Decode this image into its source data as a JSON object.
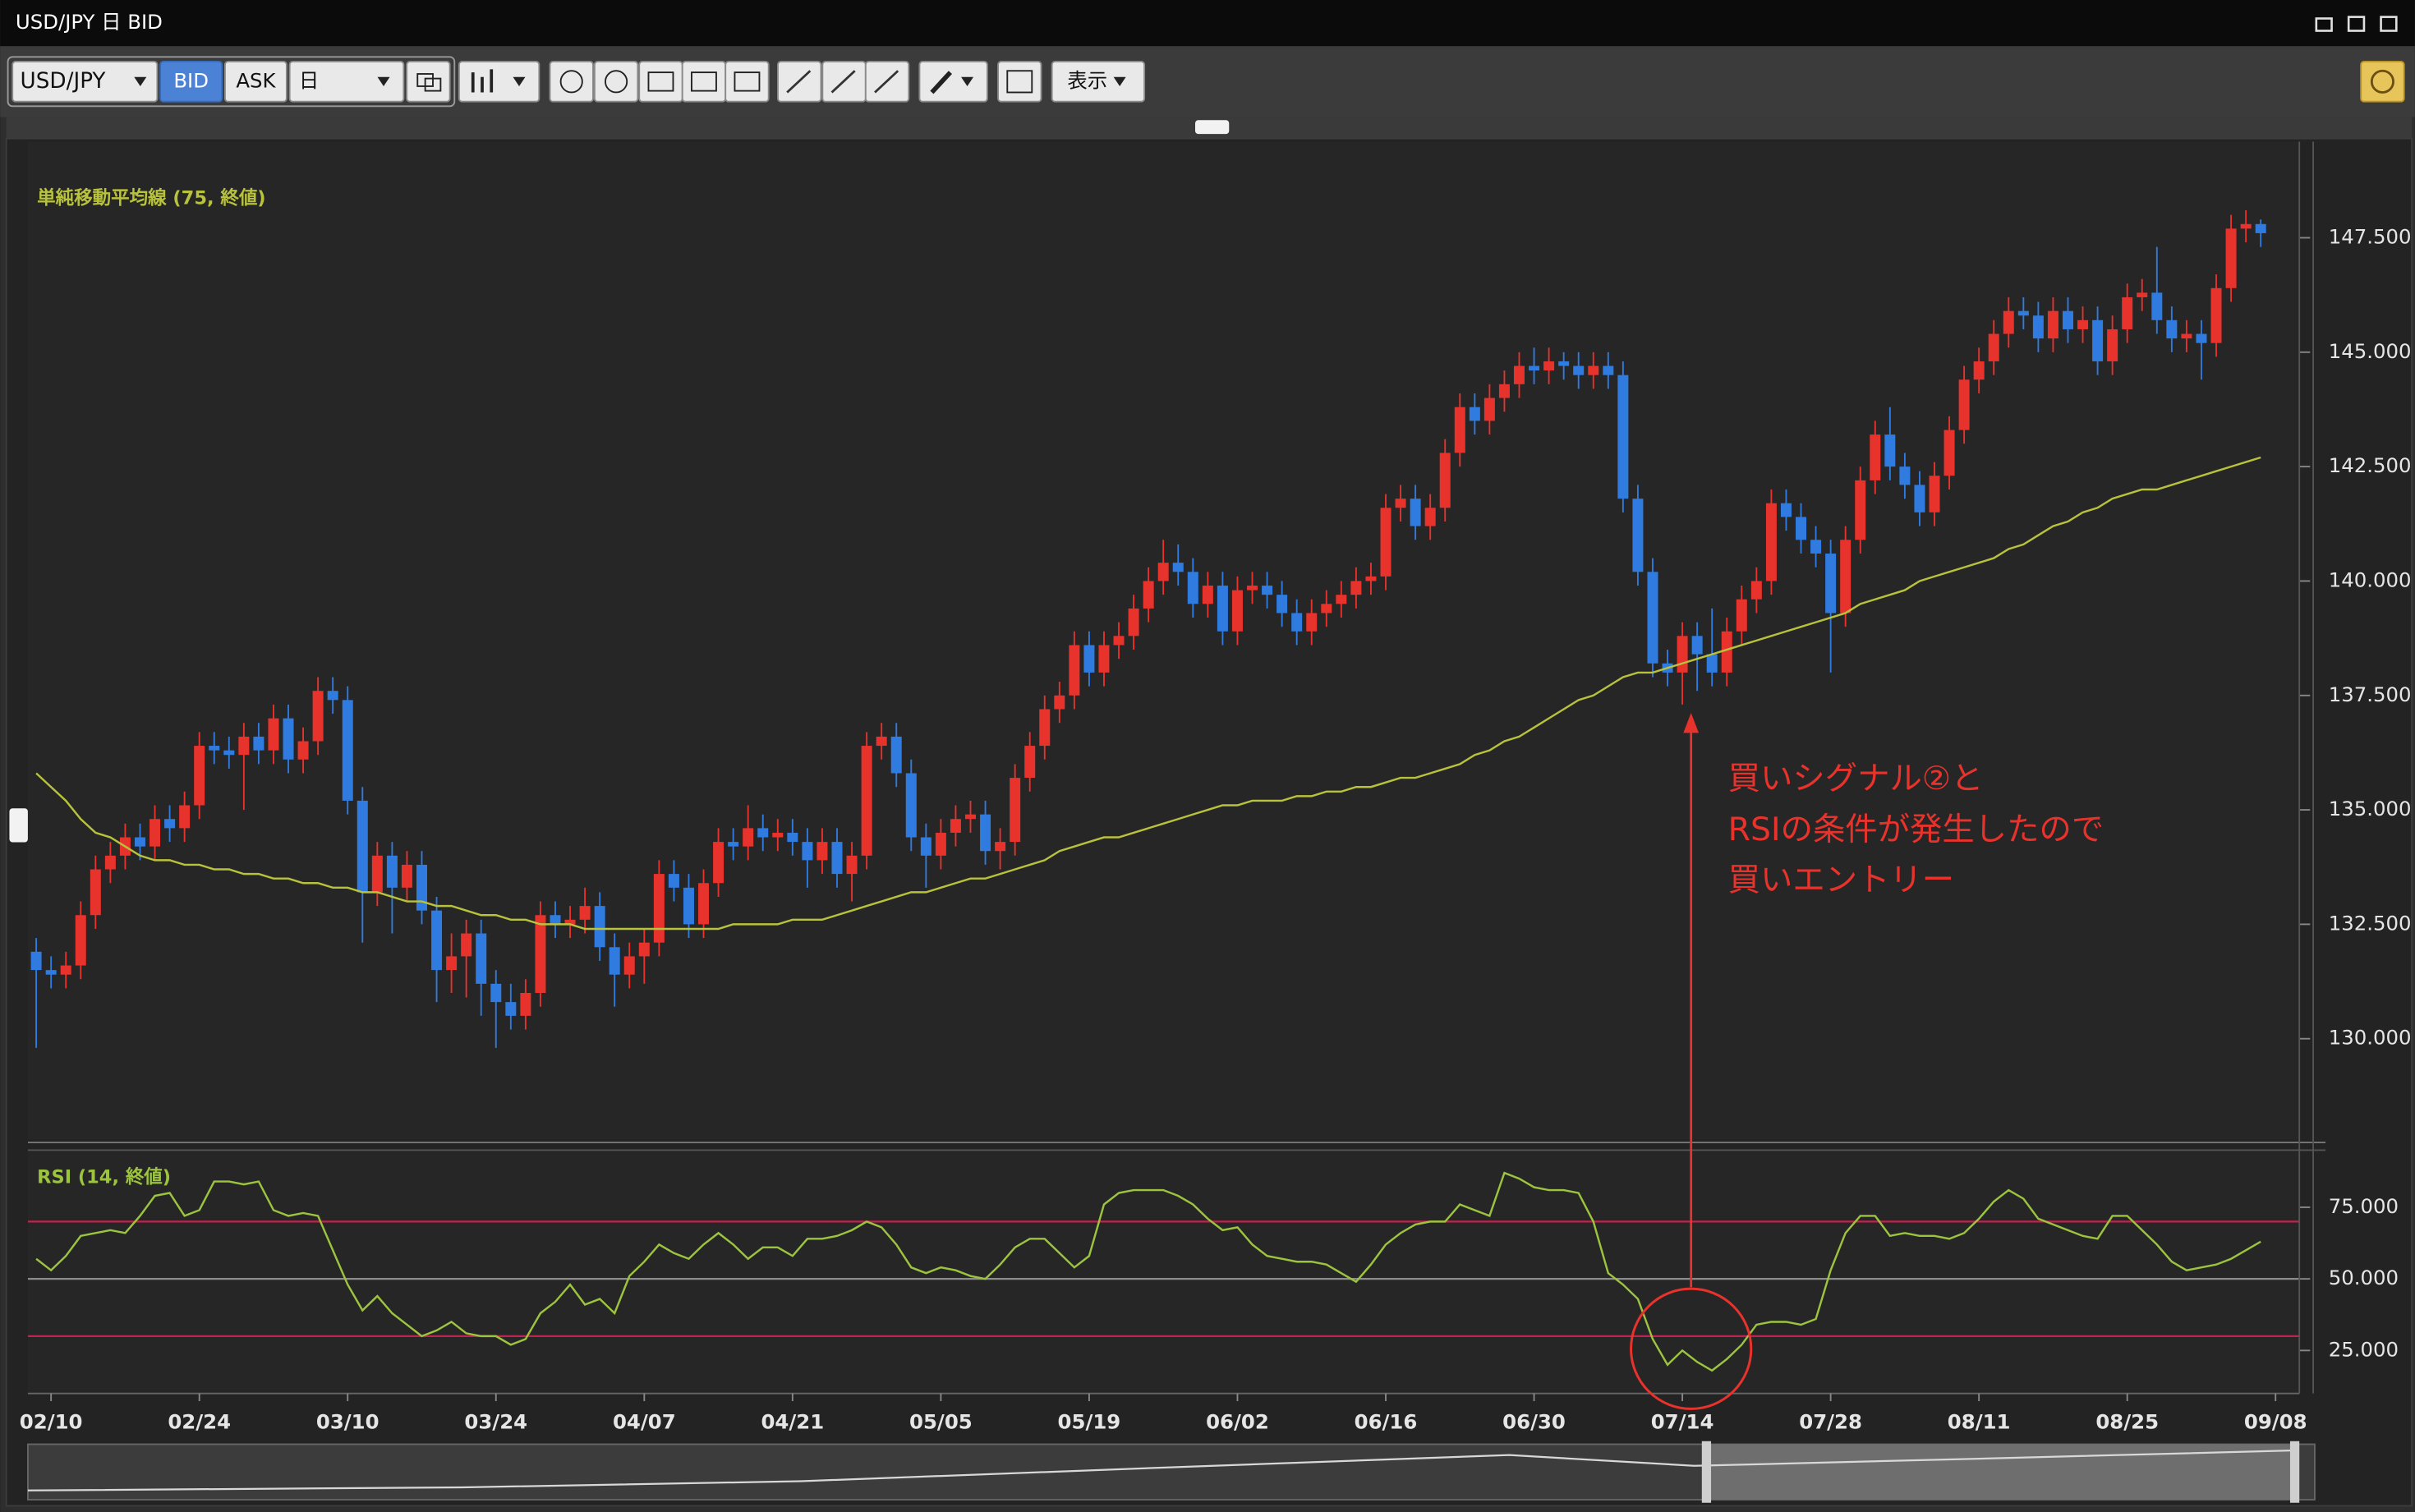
{
  "window": {
    "title": "USD/JPY 日 BID"
  },
  "toolbar": {
    "symbol": "USD/JPY",
    "price_side": [
      "BID",
      "ASK"
    ],
    "period": "日",
    "display": "表示"
  },
  "chart_data": [
    {
      "type": "candlestick",
      "up_color": "#e8322c",
      "down_color": "#2f7be0",
      "ylim": [
        127.8,
        149.6
      ],
      "yticks": [
        {
          "value": 130,
          "label": "130.000"
        },
        {
          "value": 132.5,
          "label": "132.500"
        },
        {
          "value": 135,
          "label": "135.000"
        },
        {
          "value": 137.5,
          "label": "137.500"
        },
        {
          "value": 140,
          "label": "140.000"
        },
        {
          "value": 142.5,
          "label": "142.500"
        },
        {
          "value": 145,
          "label": "145.000"
        },
        {
          "value": 147.5,
          "label": "147.500"
        }
      ],
      "open": [
        131.9,
        131.5,
        131.4,
        131.6,
        132.7,
        133.7,
        134.0,
        134.4,
        134.2,
        134.8,
        134.6,
        135.1,
        136.4,
        136.3,
        136.2,
        136.6,
        136.3,
        137.0,
        136.1,
        136.5,
        137.6,
        137.4,
        135.2,
        133.2,
        134.0,
        133.3,
        133.8,
        132.8,
        131.5,
        131.8,
        132.3,
        131.2,
        130.8,
        130.5,
        131.0,
        132.7,
        132.5,
        132.6,
        132.9,
        132.0,
        131.4,
        131.8,
        132.1,
        133.6,
        133.3,
        132.5,
        133.4,
        134.3,
        134.2,
        134.6,
        134.4,
        134.5,
        134.3,
        133.9,
        134.3,
        133.6,
        134.0,
        136.4,
        136.6,
        135.8,
        134.4,
        134.0,
        134.5,
        134.8,
        134.9,
        134.1,
        134.3,
        135.7,
        136.4,
        137.2,
        137.5,
        138.6,
        138.0,
        138.6,
        138.8,
        139.4,
        140.0,
        140.4,
        140.2,
        139.5,
        139.9,
        138.9,
        139.8,
        139.9,
        139.7,
        139.3,
        138.9,
        139.3,
        139.5,
        139.7,
        140.0,
        140.1,
        141.6,
        141.8,
        141.2,
        141.6,
        142.8,
        143.8,
        143.5,
        144.0,
        144.3,
        144.7,
        144.6,
        144.8,
        144.7,
        144.5,
        144.7,
        144.5,
        141.8,
        140.2,
        138.2,
        138.0,
        138.8,
        138.4,
        138.0,
        138.9,
        139.6,
        140.0,
        141.7,
        141.4,
        140.9,
        140.6,
        139.3,
        140.9,
        142.2,
        143.2,
        142.5,
        142.1,
        141.5,
        142.3,
        143.3,
        144.4,
        144.8,
        145.4,
        145.9,
        145.8,
        145.3,
        145.9,
        145.5,
        145.7,
        144.8,
        145.5,
        146.2,
        146.3,
        145.7,
        145.3,
        145.4,
        145.2,
        146.4,
        147.7,
        147.8,
        null,
        null
      ],
      "high": [
        132.2,
        131.8,
        131.9,
        133.0,
        134.0,
        134.3,
        134.7,
        134.7,
        135.1,
        135.1,
        135.4,
        136.7,
        136.7,
        136.6,
        136.9,
        136.9,
        137.3,
        137.3,
        136.8,
        137.9,
        137.9,
        137.7,
        135.5,
        134.3,
        134.3,
        134.1,
        134.1,
        133.1,
        132.3,
        132.6,
        132.6,
        131.5,
        131.2,
        131.3,
        133.0,
        133.0,
        132.9,
        133.3,
        133.2,
        132.3,
        132.1,
        132.4,
        133.9,
        133.9,
        133.6,
        133.7,
        134.6,
        134.6,
        135.1,
        134.9,
        134.8,
        134.8,
        134.6,
        134.6,
        134.6,
        134.3,
        136.7,
        136.9,
        136.9,
        136.1,
        134.7,
        134.8,
        135.1,
        135.2,
        135.2,
        134.6,
        136.0,
        136.7,
        137.5,
        137.8,
        138.9,
        138.9,
        138.9,
        139.1,
        139.7,
        140.3,
        140.9,
        140.8,
        140.5,
        140.2,
        140.2,
        140.1,
        140.2,
        140.2,
        140.0,
        139.6,
        139.6,
        139.8,
        140.0,
        140.3,
        140.4,
        141.9,
        142.1,
        142.1,
        141.9,
        143.1,
        144.1,
        144.1,
        144.3,
        144.6,
        145.0,
        145.1,
        145.1,
        145.0,
        145.0,
        145.0,
        145.0,
        144.8,
        142.1,
        140.5,
        138.5,
        139.1,
        139.1,
        139.4,
        139.2,
        139.9,
        140.3,
        142.0,
        142.0,
        141.7,
        141.2,
        140.9,
        141.2,
        142.5,
        143.5,
        143.8,
        142.8,
        142.4,
        142.6,
        143.6,
        144.7,
        145.1,
        145.7,
        146.2,
        146.2,
        146.1,
        146.2,
        146.2,
        146.0,
        146.0,
        145.8,
        146.5,
        146.6,
        147.3,
        146.0,
        145.7,
        145.7,
        146.7,
        148.0,
        148.1,
        147.9,
        null,
        null
      ],
      "low": [
        129.8,
        131.1,
        131.1,
        131.3,
        132.4,
        133.4,
        133.7,
        133.9,
        133.9,
        134.3,
        134.3,
        134.8,
        136.0,
        135.9,
        135.0,
        136.0,
        136.0,
        135.8,
        135.8,
        136.2,
        137.1,
        134.9,
        132.1,
        132.9,
        132.3,
        133.0,
        132.5,
        130.8,
        131.0,
        130.9,
        130.5,
        129.8,
        130.2,
        130.2,
        130.7,
        132.2,
        132.2,
        132.3,
        131.7,
        130.7,
        131.1,
        131.2,
        131.8,
        133.0,
        132.2,
        132.2,
        133.1,
        133.9,
        133.9,
        134.1,
        134.1,
        134.0,
        133.3,
        133.6,
        133.3,
        133.0,
        133.7,
        136.1,
        135.5,
        134.1,
        133.3,
        133.7,
        134.2,
        134.5,
        133.8,
        133.7,
        134.0,
        135.4,
        136.1,
        136.9,
        137.2,
        137.7,
        137.7,
        138.3,
        138.5,
        139.1,
        139.7,
        139.9,
        139.2,
        139.2,
        138.6,
        138.6,
        139.5,
        139.4,
        139.0,
        138.6,
        138.6,
        139.0,
        139.2,
        139.4,
        139.7,
        139.8,
        141.3,
        140.9,
        140.9,
        141.3,
        142.5,
        143.2,
        143.2,
        143.7,
        144.0,
        144.3,
        144.3,
        144.4,
        144.2,
        144.2,
        144.2,
        141.5,
        139.9,
        137.9,
        137.7,
        137.3,
        137.6,
        137.7,
        137.7,
        138.6,
        139.3,
        139.7,
        141.1,
        140.6,
        140.3,
        138.0,
        139.0,
        140.6,
        141.9,
        142.2,
        141.8,
        141.2,
        141.2,
        142.0,
        143.0,
        144.1,
        144.5,
        145.1,
        145.5,
        145.0,
        145.0,
        145.2,
        145.2,
        144.5,
        144.5,
        145.2,
        145.9,
        145.4,
        145.0,
        145.0,
        144.4,
        144.9,
        146.1,
        147.4,
        147.3,
        null,
        null
      ],
      "close": [
        131.5,
        131.4,
        131.6,
        132.7,
        133.7,
        134.0,
        134.4,
        134.2,
        134.8,
        134.6,
        135.1,
        136.4,
        136.3,
        136.2,
        136.6,
        136.3,
        137.0,
        136.1,
        136.5,
        137.6,
        137.4,
        135.2,
        133.2,
        134.0,
        133.3,
        133.8,
        132.8,
        131.5,
        131.8,
        132.3,
        131.2,
        130.8,
        130.5,
        131.0,
        132.7,
        132.5,
        132.6,
        132.9,
        132.0,
        131.4,
        131.8,
        132.1,
        133.6,
        133.3,
        132.5,
        133.4,
        134.3,
        134.2,
        134.6,
        134.4,
        134.5,
        134.3,
        133.9,
        134.3,
        133.6,
        134.0,
        136.4,
        136.6,
        135.8,
        134.4,
        134.0,
        134.5,
        134.8,
        134.9,
        134.1,
        134.3,
        135.7,
        136.4,
        137.2,
        137.5,
        138.6,
        138.0,
        138.6,
        138.8,
        139.4,
        140.0,
        140.4,
        140.2,
        139.5,
        139.9,
        138.9,
        139.8,
        139.9,
        139.7,
        139.3,
        138.9,
        139.3,
        139.5,
        139.7,
        140.0,
        140.1,
        141.6,
        141.8,
        141.2,
        141.6,
        142.8,
        143.8,
        143.5,
        144.0,
        144.3,
        144.7,
        144.6,
        144.8,
        144.7,
        144.5,
        144.7,
        144.5,
        141.8,
        140.2,
        138.2,
        138.0,
        138.8,
        138.4,
        138.0,
        138.9,
        139.6,
        140.0,
        141.7,
        141.4,
        140.9,
        140.6,
        139.3,
        140.9,
        142.2,
        143.2,
        142.5,
        142.1,
        141.5,
        142.3,
        143.3,
        144.4,
        144.8,
        145.4,
        145.9,
        145.8,
        145.3,
        145.9,
        145.5,
        145.7,
        144.8,
        145.5,
        146.2,
        146.3,
        145.7,
        145.3,
        145.4,
        145.2,
        146.4,
        147.7,
        147.8,
        147.6,
        null,
        null
      ],
      "series": [
        {
          "name": "単純移動平均線 (75, 終値)",
          "color": "#b8c23c",
          "values": [
            135.8,
            135.5,
            135.2,
            134.8,
            134.5,
            134.4,
            134.2,
            134.0,
            133.9,
            133.9,
            133.8,
            133.8,
            133.7,
            133.7,
            133.6,
            133.6,
            133.5,
            133.5,
            133.4,
            133.4,
            133.3,
            133.3,
            133.2,
            133.2,
            133.1,
            133.0,
            133.0,
            132.9,
            132.9,
            132.8,
            132.7,
            132.7,
            132.6,
            132.6,
            132.5,
            132.5,
            132.5,
            132.4,
            132.4,
            132.4,
            132.4,
            132.4,
            132.4,
            132.4,
            132.4,
            132.4,
            132.4,
            132.5,
            132.5,
            132.5,
            132.5,
            132.6,
            132.6,
            132.6,
            132.7,
            132.8,
            132.9,
            133.0,
            133.1,
            133.2,
            133.2,
            133.3,
            133.4,
            133.5,
            133.5,
            133.6,
            133.7,
            133.8,
            133.9,
            134.1,
            134.2,
            134.3,
            134.4,
            134.4,
            134.5,
            134.6,
            134.7,
            134.8,
            134.9,
            135.0,
            135.1,
            135.1,
            135.2,
            135.2,
            135.2,
            135.3,
            135.3,
            135.4,
            135.4,
            135.5,
            135.5,
            135.6,
            135.7,
            135.7,
            135.8,
            135.9,
            136.0,
            136.2,
            136.3,
            136.5,
            136.6,
            136.8,
            137.0,
            137.2,
            137.4,
            137.5,
            137.7,
            137.9,
            138.0,
            138.0,
            138.1,
            138.2,
            138.3,
            138.4,
            138.5,
            138.6,
            138.7,
            138.8,
            138.9,
            139.0,
            139.1,
            139.2,
            139.3,
            139.5,
            139.6,
            139.7,
            139.8,
            140.0,
            140.1,
            140.2,
            140.3,
            140.4,
            140.5,
            140.7,
            140.8,
            141.0,
            141.2,
            141.3,
            141.5,
            141.6,
            141.8,
            141.9,
            142.0,
            142.0,
            142.1,
            142.2,
            142.3,
            142.4,
            142.5,
            142.6,
            142.7,
            null,
            null
          ]
        }
      ],
      "annotation": [
        "買いシグナル②と",
        "RSIの条件が発生したので",
        "買いエントリー"
      ],
      "annotation_color": "#e8322c"
    },
    {
      "type": "line",
      "categories": [
        null,
        "02/10",
        null,
        null,
        null,
        null,
        null,
        null,
        null,
        null,
        null,
        "02/24",
        null,
        null,
        null,
        null,
        null,
        null,
        null,
        null,
        null,
        "03/10",
        null,
        null,
        null,
        null,
        null,
        null,
        null,
        null,
        null,
        "03/24",
        null,
        null,
        null,
        null,
        null,
        null,
        null,
        null,
        null,
        "04/07",
        null,
        null,
        null,
        null,
        null,
        null,
        null,
        null,
        null,
        "04/21",
        null,
        null,
        null,
        null,
        null,
        null,
        null,
        null,
        null,
        "05/05",
        null,
        null,
        null,
        null,
        null,
        null,
        null,
        null,
        null,
        "05/19",
        null,
        null,
        null,
        null,
        null,
        null,
        null,
        null,
        null,
        "06/02",
        null,
        null,
        null,
        null,
        null,
        null,
        null,
        null,
        null,
        "06/16",
        null,
        null,
        null,
        null,
        null,
        null,
        null,
        null,
        null,
        "06/30",
        null,
        null,
        null,
        null,
        null,
        null,
        null,
        null,
        null,
        "07/14",
        null,
        null,
        null,
        null,
        null,
        null,
        null,
        null,
        null,
        "07/28",
        null,
        null,
        null,
        null,
        null,
        null,
        null,
        null,
        null,
        "08/11",
        null,
        null,
        null,
        null,
        null,
        null,
        null,
        null,
        null,
        "08/25",
        null,
        null,
        null,
        null,
        null,
        null,
        null,
        null,
        null,
        "09/08",
        null
      ],
      "ylim": [
        10,
        94.4
      ],
      "yticks": [
        {
          "value": 25,
          "label": "25.000"
        },
        {
          "value": 50,
          "label": "50.000"
        },
        {
          "value": 75,
          "label": "75.000"
        }
      ],
      "levels": [
        {
          "value": 70,
          "color": "#c2224e"
        },
        {
          "value": 50,
          "color": "#8c8c8c"
        },
        {
          "value": 30,
          "color": "#c2224e"
        }
      ],
      "series": [
        {
          "name": "RSI (14, 終値)",
          "color": "#9cc43f",
          "values": [
            57,
            53,
            58,
            65,
            66,
            67,
            66,
            72,
            79,
            80,
            72,
            74,
            84,
            84,
            83,
            84,
            74,
            72,
            73,
            72,
            60,
            48,
            39,
            44,
            38,
            34,
            30,
            32,
            35,
            31,
            30,
            30,
            27,
            29,
            38,
            42,
            48,
            41,
            43,
            38,
            51,
            56,
            62,
            59,
            57,
            62,
            66,
            62,
            57,
            61,
            61,
            58,
            64,
            64,
            65,
            67,
            70,
            68,
            62,
            54,
            52,
            54,
            53,
            51,
            50,
            55,
            61,
            64,
            64,
            59,
            54,
            58,
            76,
            80,
            81,
            81,
            81,
            79,
            76,
            71,
            67,
            68,
            62,
            58,
            57,
            56,
            56,
            55,
            52,
            49,
            55,
            62,
            66,
            69,
            70,
            70,
            76,
            74,
            72,
            87,
            85,
            82,
            81,
            81,
            80,
            70,
            52,
            48,
            43,
            29,
            20,
            25,
            21,
            18,
            22,
            27,
            34,
            35,
            35,
            34,
            36,
            53,
            66,
            72,
            72,
            65,
            66,
            65,
            65,
            64,
            66,
            71,
            77,
            81,
            78,
            71,
            69,
            67,
            65,
            64,
            72,
            72,
            67,
            62,
            56,
            53,
            54,
            55,
            57,
            60,
            63,
            null,
            null
          ]
        }
      ]
    }
  ]
}
